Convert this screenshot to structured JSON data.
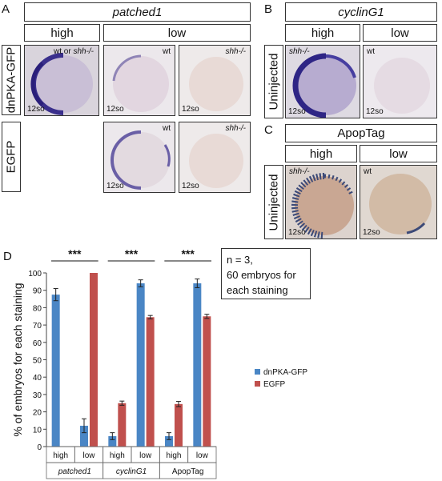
{
  "panels": {
    "a": {
      "letter": "A",
      "gene": "patched1",
      "col_high": "high",
      "col_low": "low",
      "row1": "dnPKA-GFP",
      "row2": "EGFP",
      "img_high_label_wt": "wt",
      "img_high_label_or": " or ",
      "img_high_label_mut": "shh-/-",
      "img_wt": "wt",
      "img_mut": "shh-/-",
      "stage": "12so"
    },
    "b": {
      "letter": "B",
      "gene": "cyclinG1",
      "col_high": "high",
      "col_low": "low",
      "row": "Uninjected",
      "img_high": "shh-/-",
      "img_low": "wt",
      "stage": "12so"
    },
    "c": {
      "letter": "C",
      "title": "ApopTag",
      "col_high": "high",
      "col_low": "low",
      "row": "Uninjected",
      "img_high": "shh-/-",
      "img_low": "wt",
      "stage": "12so"
    },
    "d": {
      "letter": "D",
      "note_line1": "n = 3,",
      "note_line2": "60 embryos for",
      "note_line3": "each staining"
    }
  },
  "chart_data": {
    "type": "bar",
    "ylabel": "% of embryos for each staining",
    "ylim": [
      0,
      100
    ],
    "yticks": [
      0,
      10,
      20,
      30,
      40,
      50,
      60,
      70,
      80,
      90,
      100
    ],
    "groups": [
      "patched1",
      "cyclinG1",
      "ApopTag"
    ],
    "categories": [
      "high",
      "low",
      "high",
      "low",
      "high",
      "low"
    ],
    "series": [
      {
        "name": "dnPKA-GFP",
        "color": "#4a86c5",
        "values": [
          87.5,
          12,
          6,
          94,
          6,
          94
        ],
        "errors": [
          3.5,
          4,
          2,
          2,
          2,
          2.5
        ]
      },
      {
        "name": "EGFP",
        "color": "#c0504d",
        "values": [
          0,
          100,
          25,
          74.5,
          24.5,
          75
        ],
        "errors": [
          0,
          0,
          1.2,
          1,
          1.5,
          1.2
        ]
      }
    ],
    "significance": [
      "***",
      "***",
      "***"
    ]
  }
}
